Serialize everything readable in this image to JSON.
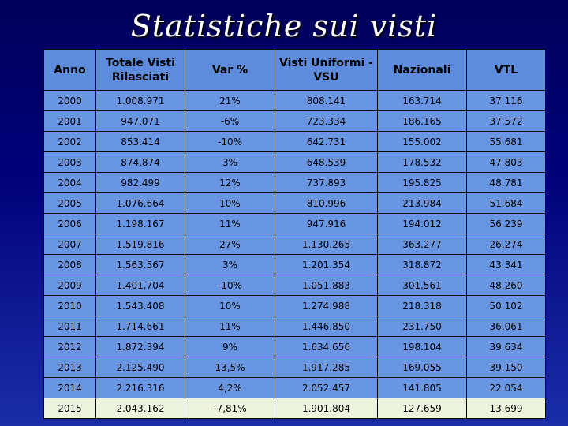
{
  "title": "Statistiche sui visti",
  "headers": [
    "Anno",
    "Totale Visti Rilasciati",
    "Var %",
    "Visti Uniformi - VSU",
    "Nazionali",
    "VTL"
  ],
  "rows": [
    [
      "2000",
      "1.008.971",
      "21%",
      "808.141",
      "163.714",
      "37.116"
    ],
    [
      "2001",
      "947.071",
      "-6%",
      "723.334",
      "186.165",
      "37.572"
    ],
    [
      "2002",
      "853.414",
      "-10%",
      "642.731",
      "155.002",
      "55.681"
    ],
    [
      "2003",
      "874.874",
      "3%",
      "648.539",
      "178.532",
      "47.803"
    ],
    [
      "2004",
      "982.499",
      "12%",
      "737.893",
      "195.825",
      "48.781"
    ],
    [
      "2005",
      "1.076.664",
      "10%",
      "810.996",
      "213.984",
      "51.684"
    ],
    [
      "2006",
      "1.198.167",
      "11%",
      "947.916",
      "194.012",
      "56.239"
    ],
    [
      "2007",
      "1.519.816",
      "27%",
      "1.130.265",
      "363.277",
      "26.274"
    ],
    [
      "2008",
      "1.563.567",
      "3%",
      "1.201.354",
      "318.872",
      "43.341"
    ],
    [
      "2009",
      "1.401.704",
      "-10%",
      "1.051.883",
      "301.561",
      "48.260"
    ],
    [
      "2010",
      "1.543.408",
      "10%",
      "1.274.988",
      "218.318",
      "50.102"
    ],
    [
      "2011",
      "1.714.661",
      "11%",
      "1.446.850",
      "231.750",
      "36.061"
    ],
    [
      "2012",
      "1.872.394",
      "9%",
      "1.634.656",
      "198.104",
      "39.634"
    ],
    [
      "2013",
      "2.125.490",
      "13,5%",
      "1.917.285",
      "169.055",
      "39.150"
    ],
    [
      "2014",
      "2.216.316",
      "4,2%",
      "2.052.457",
      "141.805",
      "22.054"
    ],
    [
      "2015",
      "2.043.162",
      "-7,81%",
      "1.901.804",
      "127.659",
      "13.699"
    ]
  ],
  "colors": {
    "header_bg": "#5d8cdc",
    "row_bg": "#6896e3",
    "last_row_bg": "#ecf4dd",
    "background_top": "#00005a",
    "background_bottom": "#1a2ea8"
  }
}
